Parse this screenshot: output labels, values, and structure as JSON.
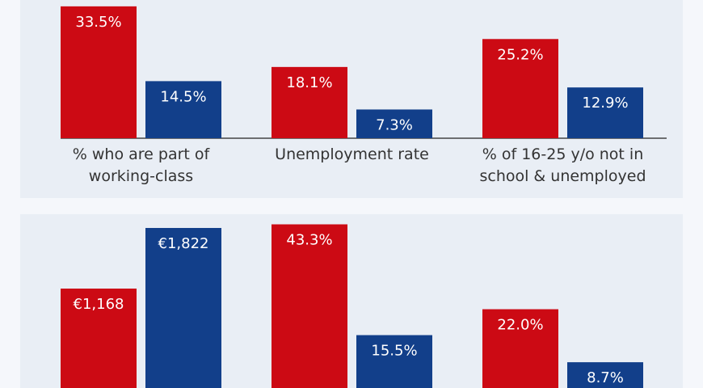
{
  "chart_data": [
    {
      "type": "bar",
      "categories": [
        "% who are part of working-class",
        "Unemployment rate",
        "% of 16-25 y/o not in school & unemployed"
      ],
      "series": [
        {
          "color": "#cc0a14",
          "values": [
            33.5,
            18.1,
            25.2
          ],
          "value_labels": [
            "33.5%",
            "18.1%",
            "25.2%"
          ]
        },
        {
          "color": "#123f8a",
          "values": [
            14.5,
            7.3,
            12.9
          ],
          "value_labels": [
            "14.5%",
            "7.3%",
            "12.9%"
          ]
        }
      ]
    },
    {
      "type": "bar",
      "categories": [
        null
      ],
      "series": [
        {
          "color": "#cc0a14",
          "values": [
            1168
          ],
          "value_labels": [
            "€1,168"
          ]
        },
        {
          "color": "#123f8a",
          "values": [
            1822
          ],
          "value_labels": [
            "€1,822"
          ]
        }
      ]
    },
    {
      "type": "bar",
      "categories": [
        null,
        null
      ],
      "series": [
        {
          "color": "#cc0a14",
          "values": [
            43.3,
            22.0
          ],
          "value_labels": [
            "43.3%",
            "22.0%"
          ]
        },
        {
          "color": "#123f8a",
          "values": [
            15.5,
            8.7
          ],
          "value_labels": [
            "15.5%",
            "8.7%"
          ]
        }
      ]
    }
  ]
}
